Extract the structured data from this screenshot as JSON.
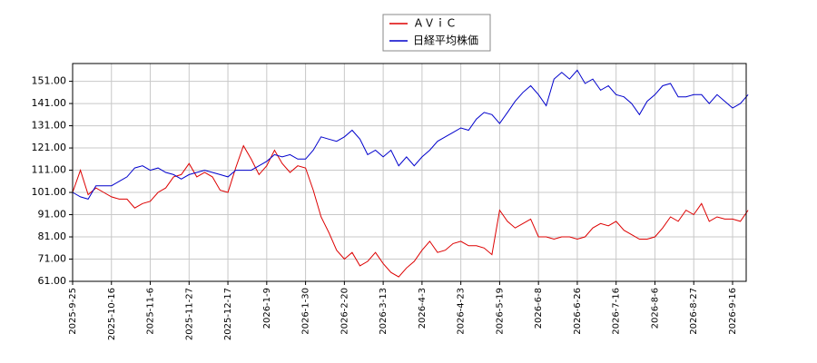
{
  "chart_data": {
    "type": "line",
    "categories": [
      "2025-9-25",
      null,
      null,
      null,
      null,
      "2025-10-16",
      null,
      null,
      null,
      null,
      "2025-11-6",
      null,
      null,
      null,
      null,
      "2025-11-27",
      null,
      null,
      null,
      null,
      "2025-12-17",
      null,
      null,
      null,
      null,
      "2026-1-9",
      null,
      null,
      null,
      null,
      "2026-1-30",
      null,
      null,
      null,
      null,
      "2026-2-20",
      null,
      null,
      null,
      null,
      "2026-3-13",
      null,
      null,
      null,
      null,
      "2026-4-3",
      null,
      null,
      null,
      null,
      "2026-4-23",
      null,
      null,
      null,
      null,
      "2026-5-19",
      null,
      null,
      null,
      null,
      "2026-6-8",
      null,
      null,
      null,
      null,
      "2026-6-26",
      null,
      null,
      null,
      null,
      "2026-7-16",
      null,
      null,
      null,
      null,
      "2026-8-6",
      null,
      null,
      null,
      null,
      "2026-8-27",
      null,
      null,
      null,
      null,
      "2026-9-16",
      null,
      null
    ],
    "series": [
      {
        "name": "ＡＶｉＣ",
        "color": "#dd0000",
        "values": [
          101,
          111,
          100,
          103,
          101,
          99,
          98,
          98,
          94,
          96,
          97,
          101,
          103,
          108,
          109,
          114,
          108,
          110,
          108,
          102,
          101,
          112,
          122,
          116,
          109,
          113,
          120,
          114,
          110,
          113,
          112,
          102,
          90,
          83,
          75,
          71,
          74,
          68,
          70,
          74,
          69,
          65,
          63,
          67,
          70,
          75,
          79,
          74,
          75,
          78,
          79,
          77,
          77,
          76,
          73,
          93,
          88,
          85,
          87,
          89,
          81,
          81,
          80,
          81,
          81,
          80,
          81,
          85,
          87,
          86,
          88,
          84,
          82,
          80,
          80,
          81,
          85,
          90,
          88,
          93,
          91,
          96,
          88,
          90,
          89,
          89,
          88,
          93
        ]
      },
      {
        "name": "日経平均株価",
        "color": "#0000cc",
        "values": [
          101,
          99,
          98,
          104,
          104,
          104,
          106,
          108,
          112,
          113,
          111,
          112,
          110,
          109,
          107,
          109,
          110,
          111,
          110,
          109,
          108,
          111,
          111,
          111,
          113,
          115,
          118,
          117,
          118,
          116,
          116,
          120,
          126,
          125,
          124,
          126,
          129,
          125,
          118,
          120,
          117,
          120,
          113,
          117,
          113,
          117,
          120,
          124,
          126,
          128,
          130,
          129,
          134,
          137,
          136,
          132,
          137,
          142,
          146,
          149,
          145,
          140,
          152,
          155,
          152,
          156,
          150,
          152,
          147,
          149,
          145,
          144,
          141,
          136,
          142,
          145,
          149,
          150,
          144,
          144,
          145,
          145,
          141,
          145,
          142,
          139,
          141,
          145
        ]
      }
    ],
    "ylim": [
      61,
      159
    ],
    "yticks": [
      {
        "value": 61,
        "label": "61.00"
      },
      {
        "value": 71,
        "label": "71.00"
      },
      {
        "value": 81,
        "label": "81.00"
      },
      {
        "value": 91,
        "label": "91.00"
      },
      {
        "value": 101,
        "label": "101.00"
      },
      {
        "value": 111,
        "label": "111.00"
      },
      {
        "value": 121,
        "label": "121.00"
      },
      {
        "value": 131,
        "label": "131.00"
      },
      {
        "value": 141,
        "label": "141.00"
      },
      {
        "value": 151,
        "label": "151.00"
      }
    ],
    "grid": true,
    "legend": "top"
  }
}
